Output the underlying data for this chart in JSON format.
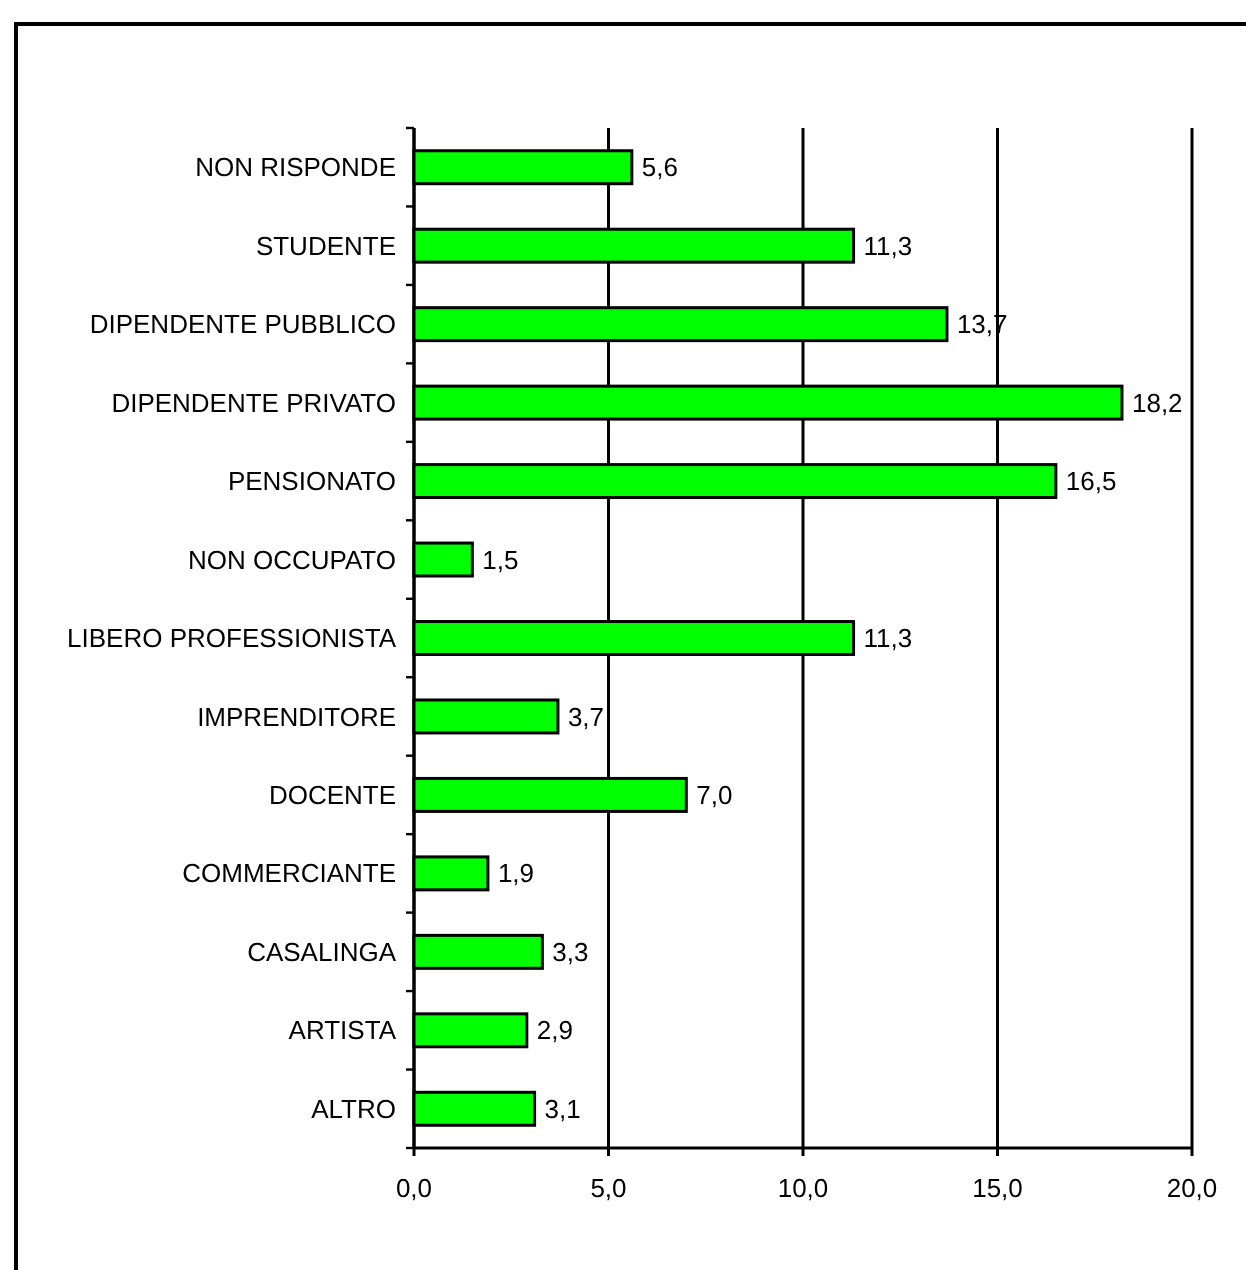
{
  "chart_data": {
    "type": "bar",
    "orientation": "horizontal",
    "categories": [
      "NON RISPONDE",
      "STUDENTE",
      "DIPENDENTE PUBBLICO",
      "DIPENDENTE PRIVATO",
      "PENSIONATO",
      "NON OCCUPATO",
      "LIBERO PROFESSIONISTA",
      "IMPRENDITORE",
      "DOCENTE",
      "COMMERCIANTE",
      "CASALINGA",
      "ARTISTA",
      "ALTRO"
    ],
    "values": [
      5.6,
      11.3,
      13.7,
      18.2,
      16.5,
      1.5,
      11.3,
      3.7,
      7.0,
      1.9,
      3.3,
      2.9,
      3.1
    ],
    "value_labels": [
      "5,6",
      "11,3",
      "13,7",
      "18,2",
      "16,5",
      "1,5",
      "11,3",
      "3,7",
      "7,0",
      "1,9",
      "3,3",
      "2,9",
      "3,1"
    ],
    "color": "#00ff00",
    "xlim": [
      0,
      20
    ],
    "xticks": [
      {
        "value": 0,
        "label": "0,0"
      },
      {
        "value": 5,
        "label": "5,0"
      },
      {
        "value": 10,
        "label": "10,0"
      },
      {
        "value": 15,
        "label": "15,0"
      },
      {
        "value": 20,
        "label": "20,0"
      }
    ],
    "grid": "x"
  }
}
